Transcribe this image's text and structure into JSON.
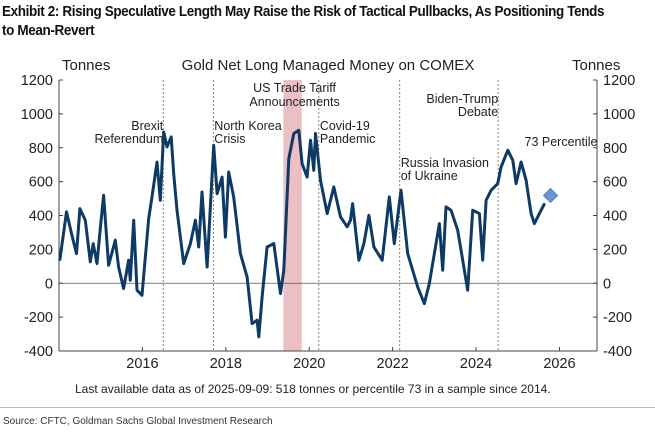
{
  "exhibit_title": "Exhibit 2: Rising Speculative Length May Raise the Risk of Tactical Pullbacks, As Positioning Tends to Mean-Revert",
  "source": "Source: CFTC, Goldman Sachs Global Investment Research",
  "chart_data": {
    "type": "line",
    "title": "Gold Net Long Managed Money on COMEX",
    "ylabel_left": "Tonnes",
    "ylabel_right": "Tonnes",
    "xlabel": "",
    "xlim": [
      2014.0,
      2026.9
    ],
    "ylim": [
      -400,
      1200
    ],
    "yticks": [
      -400,
      -200,
      0,
      200,
      400,
      600,
      800,
      1000,
      1200
    ],
    "xticks": [
      2016,
      2018,
      2020,
      2022,
      2024,
      2026
    ],
    "grid": false,
    "line_color": "#0e3a66",
    "series": [
      {
        "x": [
          2014.02,
          2014.18,
          2014.3,
          2014.42,
          2014.5,
          2014.63,
          2014.75,
          2014.82,
          2014.91,
          2014.99,
          2015.07,
          2015.19,
          2015.35,
          2015.43,
          2015.55,
          2015.67,
          2015.71,
          2015.79,
          2015.87,
          2015.99,
          2016.15,
          2016.23,
          2016.35,
          2016.43,
          2016.51,
          2016.59,
          2016.69,
          2016.75,
          2016.83,
          2016.99,
          2017.15,
          2017.27,
          2017.35,
          2017.43,
          2017.55,
          2017.71,
          2017.79,
          2017.91,
          2017.99,
          2018.07,
          2018.19,
          2018.35,
          2018.51,
          2018.63,
          2018.75,
          2018.79,
          2018.87,
          2018.99,
          2019.15,
          2019.31,
          2019.39,
          2019.51,
          2019.63,
          2019.75,
          2019.83,
          2019.95,
          2020.03,
          2020.11,
          2020.15,
          2020.27,
          2020.43,
          2020.59,
          2020.75,
          2020.91,
          2020.99,
          2021.04,
          2021.19,
          2021.31,
          2021.43,
          2021.55,
          2021.75,
          2021.92,
          2022.04,
          2022.2,
          2022.36,
          2022.6,
          2022.76,
          2022.88,
          2023.12,
          2023.2,
          2023.28,
          2023.4,
          2023.56,
          2023.68,
          2023.8,
          2023.92,
          2024.08,
          2024.16,
          2024.24,
          2024.36,
          2024.52,
          2024.6,
          2024.76,
          2024.88,
          2024.96,
          2025.08,
          2025.2,
          2025.32,
          2025.4,
          2025.52,
          2025.64
        ],
        "y": [
          136,
          421,
          293,
          175,
          441,
          372,
          126,
          234,
          116,
          323,
          519,
          106,
          254,
          96,
          -31,
          136,
          18,
          372,
          -41,
          -71,
          382,
          510,
          716,
          490,
          893,
          805,
          864,
          647,
          431,
          116,
          234,
          372,
          214,
          539,
          96,
          815,
          529,
          627,
          273,
          657,
          509,
          175,
          37,
          -238,
          -218,
          -317,
          -81,
          214,
          234,
          -61,
          77,
          736,
          884,
          903,
          706,
          627,
          844,
          667,
          884,
          608,
          411,
          569,
          392,
          333,
          372,
          470,
          136,
          234,
          401,
          214,
          136,
          510,
          234,
          549,
          175,
          -22,
          -120,
          -2,
          352,
          77,
          451,
          431,
          313,
          136,
          -41,
          431,
          411,
          136,
          490,
          549,
          588,
          687,
          785,
          726,
          588,
          716,
          608,
          411,
          352,
          411,
          470
        ]
      }
    ],
    "last_point": {
      "date": "2025-09-09",
      "value": 518,
      "marker": "diamond",
      "color": "#6b95cf"
    },
    "shaded_region": {
      "x": [
        2019.38,
        2019.82
      ],
      "label": "US Trade Tariff Announcements",
      "color": "#e8b4b8"
    },
    "events": [
      {
        "x": 2016.5,
        "label_lines": [
          "Brexit",
          "Referendum"
        ]
      },
      {
        "x": 2017.7,
        "label_lines": [
          "North Korea",
          "Crisis"
        ]
      },
      {
        "x": 2020.23,
        "label_lines": [
          "Covid-19",
          "Pandemic"
        ]
      },
      {
        "x": 2022.17,
        "label_lines": [
          "Russia Invasion",
          "of Ukraine"
        ]
      },
      {
        "x": 2024.53,
        "label_lines": [
          "Biden-Trump",
          "Debate"
        ]
      }
    ],
    "annotations": [
      "73 Percentile"
    ],
    "footnote": "Last available data as of 2025-09-09: 518 tonnes or percentile 73 in a sample since 2014."
  }
}
